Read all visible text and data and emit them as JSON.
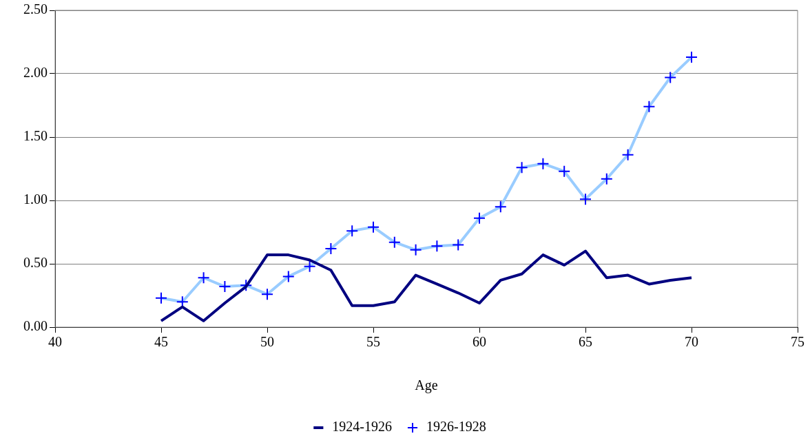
{
  "chart_data": {
    "type": "line",
    "xlabel": "Age",
    "x": [
      45,
      46,
      47,
      48,
      49,
      50,
      51,
      52,
      53,
      54,
      55,
      56,
      57,
      58,
      59,
      60,
      61,
      62,
      63,
      64,
      65,
      66,
      67,
      68,
      69,
      70
    ],
    "series": [
      {
        "name": "1924-1926",
        "color": "#000080",
        "marker": "none",
        "values": [
          0.05,
          0.16,
          0.05,
          0.19,
          0.32,
          0.57,
          0.57,
          0.53,
          0.45,
          0.17,
          0.17,
          0.2,
          0.41,
          0.34,
          0.27,
          0.19,
          0.37,
          0.42,
          0.57,
          0.49,
          0.6,
          0.39,
          0.41,
          0.34,
          0.37,
          0.39
        ]
      },
      {
        "name": "1926-1928",
        "color": "#99ccff",
        "marker": "cross",
        "values": [
          0.23,
          0.2,
          0.39,
          0.32,
          0.33,
          0.26,
          0.4,
          0.48,
          0.62,
          0.76,
          0.79,
          0.67,
          0.61,
          0.64,
          0.65,
          0.86,
          0.95,
          1.26,
          1.29,
          1.23,
          1.01,
          1.17,
          1.36,
          1.74,
          1.97,
          2.13
        ]
      }
    ],
    "xlim": [
      40,
      75
    ],
    "xticks": [
      40,
      45,
      50,
      55,
      60,
      65,
      70,
      75
    ],
    "ylim": [
      0,
      2.5
    ],
    "yticks": [
      {
        "value": 0,
        "label": "0.00"
      },
      {
        "value": 0.5,
        "label": "0.50"
      },
      {
        "value": 1,
        "label": "1.00"
      },
      {
        "value": 1.5,
        "label": "1.50"
      },
      {
        "value": 2,
        "label": "2.00"
      },
      {
        "value": 2.5,
        "label": "2.50"
      }
    ],
    "grid": "y",
    "legend": "bottom",
    "line_style": "solid"
  }
}
